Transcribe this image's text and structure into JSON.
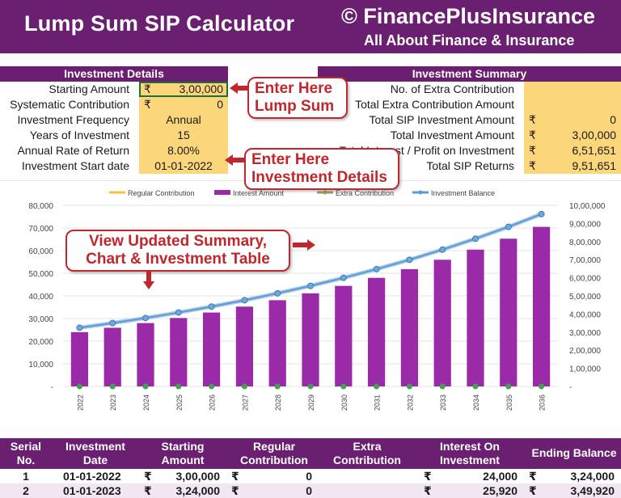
{
  "header": {
    "title": "Lump Sum SIP Calculator",
    "brand": "© FinancePlusInsurance",
    "tagline": "All About Finance & Insurance"
  },
  "investment_details": {
    "heading": "Investment Details",
    "currency_symbol": "₹",
    "rows": [
      {
        "label": "Starting Amount",
        "value": "3,00,000",
        "currency": true
      },
      {
        "label": "Systematic Contribution",
        "value": "0",
        "currency": true
      },
      {
        "label": "Investment Frequency",
        "value": "Annual",
        "currency": false
      },
      {
        "label": "Years of Investment",
        "value": "15",
        "currency": false
      },
      {
        "label": "Annual Rate of Return",
        "value": "8.00%",
        "currency": false
      },
      {
        "label": "Investment Start date",
        "value": "01-01-2022",
        "currency": false
      }
    ]
  },
  "investment_summary": {
    "heading": "Investment Summary",
    "rows": [
      {
        "label": "No. of Extra Contribution",
        "value": "",
        "currency": false
      },
      {
        "label": "Total Extra Contribution Amount",
        "value": "",
        "currency": false
      },
      {
        "label": "Total SIP Investment Amount",
        "value": "0",
        "currency": true
      },
      {
        "label": "Total Investment Amount",
        "value": "3,00,000",
        "currency": true
      },
      {
        "label": "Total Interest / Profit on Investment",
        "value": "6,51,651",
        "currency": true
      },
      {
        "label": "Total SIP Returns",
        "value": "9,51,651",
        "currency": true
      }
    ]
  },
  "callouts": {
    "lump_sum": "Enter Here Lump Sum",
    "lump_sum_lines": [
      "Enter Here",
      "Lump Sum"
    ],
    "details_lines": [
      "Enter Here",
      "Investment Details"
    ],
    "summary_lines": [
      "View Updated Summary,",
      "Chart & Investment Table"
    ]
  },
  "colors": {
    "brand_purple": "#6b1f70",
    "input_yellow": "#fcd67a",
    "callout_red": "#c0272d",
    "bar_purple": "#9a2aa8",
    "balance_blue": "#5b9bd5",
    "regular_yellow": "#f5c242",
    "extra_olive": "#a0a060"
  },
  "chart_data": {
    "type": "bar",
    "categories": [
      "2022",
      "2023",
      "2024",
      "2025",
      "2026",
      "2027",
      "2028",
      "2029",
      "2030",
      "2031",
      "2032",
      "2033",
      "2034",
      "2035",
      "2036"
    ],
    "legend": [
      "Regular Contribution",
      "Interest Amount",
      "Extra Contribution",
      "Investment Balance"
    ],
    "legend_position": "top",
    "series": [
      {
        "name": "Interest Amount",
        "axis": "left",
        "kind": "bar",
        "values": [
          24000,
          25920,
          27994,
          30233,
          32652,
          35264,
          38085,
          41132,
          44422,
          47976,
          51814,
          55959,
          60436,
          65271,
          70492
        ]
      },
      {
        "name": "Investment Balance",
        "axis": "right",
        "kind": "line",
        "values": [
          324000,
          349920,
          377914,
          408147,
          440798,
          476062,
          514147,
          555279,
          599701,
          647677,
          699491,
          755451,
          815887,
          881158,
          951651
        ]
      },
      {
        "name": "Regular Contribution",
        "axis": "left",
        "kind": "bar",
        "values": [
          0,
          0,
          0,
          0,
          0,
          0,
          0,
          0,
          0,
          0,
          0,
          0,
          0,
          0,
          0
        ]
      },
      {
        "name": "Extra Contribution",
        "axis": "left",
        "kind": "line",
        "values": [
          0,
          0,
          0,
          0,
          0,
          0,
          0,
          0,
          0,
          0,
          0,
          0,
          0,
          0,
          0
        ]
      }
    ],
    "y_left": {
      "min": 0,
      "max": 80000,
      "ticks": [
        "-",
        "10,000",
        "20,000",
        "30,000",
        "40,000",
        "50,000",
        "60,000",
        "70,000",
        "80,000"
      ]
    },
    "y_right": {
      "min": 0,
      "max": 1000000,
      "ticks": [
        "-",
        "1,00,000",
        "2,00,000",
        "3,00,000",
        "4,00,000",
        "5,00,000",
        "6,00,000",
        "7,00,000",
        "8,00,000",
        "9,00,000",
        "10,00,000"
      ]
    },
    "grid": true
  },
  "table": {
    "headers": [
      [
        "Serial",
        "No."
      ],
      [
        "Investment",
        "Date"
      ],
      [
        "Starting",
        "Amount"
      ],
      [
        "Regular",
        "Contribution"
      ],
      [
        "Extra",
        "Contribution"
      ],
      [
        "Interest On",
        "Investment"
      ],
      [
        "Ending Balance",
        ""
      ]
    ],
    "rows": [
      {
        "serial": "1",
        "date": "01-01-2022",
        "starting": "3,00,000",
        "regular": "0",
        "extra": "",
        "interest": "24,000",
        "ending": "3,24,000"
      },
      {
        "serial": "2",
        "date": "01-01-2023",
        "starting": "3,24,000",
        "regular": "0",
        "extra": "",
        "interest": "25,920",
        "ending": "3,49,920"
      }
    ]
  }
}
